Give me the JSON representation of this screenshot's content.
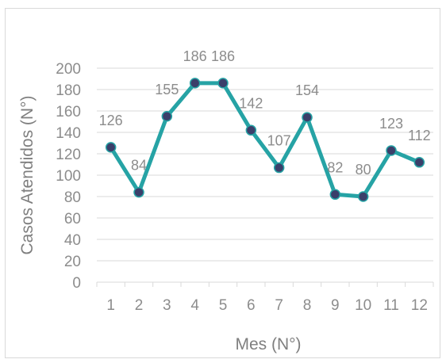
{
  "chart_data": {
    "type": "line",
    "title": "",
    "xlabel": "Mes (N°)",
    "ylabel": "Casos Atendidos (N°)",
    "categories": [
      "1",
      "2",
      "3",
      "4",
      "5",
      "6",
      "7",
      "8",
      "9",
      "10",
      "11",
      "12"
    ],
    "series": [
      {
        "values": [
          126,
          84,
          155,
          186,
          186,
          142,
          107,
          154,
          82,
          80,
          123,
          112
        ]
      }
    ],
    "ylim": [
      0,
      200
    ],
    "yticks": [
      "0",
      "20",
      "40",
      "60",
      "80",
      "100",
      "120",
      "140",
      "160",
      "180",
      "200"
    ],
    "grid": true,
    "legend": "none",
    "colors": {
      "line": "#26a3a5",
      "marker": "#3b3f6a",
      "grid": "#d9d9d9",
      "text": "#8c8c8c",
      "label": "#7f7f7f"
    }
  }
}
